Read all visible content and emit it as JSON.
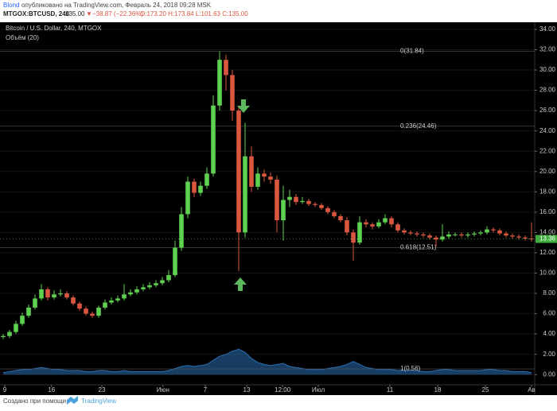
{
  "header": {
    "author": "Blond",
    "published": "опубликовано на TradingView.com, Февраль 24, 2018 09:28 MSK",
    "symbol": "MTGOX:BTCUSD, 240",
    "last": "135.00",
    "arrow": "▼",
    "change": "−38.87 (−22.36%)",
    "ohlc": "O:173.20 H:173.84 L:101.63 C:135.00"
  },
  "footer": {
    "text": "Создано при помощи",
    "brand": "TradingView"
  },
  "chart_data": {
    "type": "candlestick",
    "title": "Bitcoin / U.S. Dollar, 240, MTGOX",
    "volume_label": "Объём (20)",
    "up_color": "#5fd04f",
    "down_color": "#d9573f",
    "volume_color": "#2b6fb3",
    "grid": true,
    "open": [
      3.7,
      3.8,
      4.2,
      5.0,
      5.8,
      6.6,
      7.5,
      8.4,
      7.6,
      7.9,
      8.0,
      7.6,
      7.0,
      6.5,
      6.0,
      5.8,
      6.6,
      7.1,
      7.3,
      7.5,
      7.9,
      8.1,
      8.4,
      8.6,
      8.8,
      9.0,
      9.3,
      9.8,
      12.5,
      15.8,
      19.0,
      17.9,
      18.6,
      19.8,
      26.5,
      31.0,
      29.5,
      26.0,
      14.0,
      21.5,
      18.5,
      19.8,
      19.5,
      19.2,
      15.2,
      17.2,
      17.5,
      17.0,
      17.1,
      16.8,
      16.7,
      16.4,
      16.0,
      15.6,
      15.2,
      14.0,
      13.0,
      15.0,
      14.8,
      14.6,
      15.0,
      15.4,
      14.8,
      14.2,
      14.0,
      13.9,
      13.8,
      13.7,
      13.5,
      13.3,
      13.6,
      13.8,
      13.8,
      13.7,
      13.8,
      13.9,
      14.0,
      14.3,
      14.2,
      13.9,
      13.7,
      13.6,
      13.5,
      13.4
    ],
    "high": [
      4.0,
      4.4,
      5.3,
      6.1,
      6.9,
      7.9,
      8.9,
      8.6,
      8.3,
      8.4,
      8.2,
      7.8,
      7.2,
      6.7,
      6.2,
      6.8,
      7.4,
      7.6,
      7.8,
      8.9,
      8.4,
      8.7,
      8.9,
      9.1,
      9.3,
      9.6,
      10.3,
      13.2,
      16.5,
      19.5,
      19.3,
      19.0,
      20.4,
      27.5,
      31.84,
      31.5,
      30.0,
      26.5,
      24.8,
      22.5,
      20.4,
      20.2,
      19.9,
      19.6,
      18.6,
      18.2,
      17.8,
      17.5,
      17.3,
      17.0,
      16.9,
      16.6,
      16.2,
      15.8,
      15.5,
      14.3,
      15.6,
      15.3,
      15.0,
      15.3,
      15.8,
      15.6,
      15.0,
      14.4,
      14.2,
      14.1,
      14.0,
      13.9,
      13.7,
      14.8,
      14.1,
      14.0,
      14.0,
      14.0,
      14.1,
      14.2,
      14.6,
      14.5,
      14.4,
      14.1,
      13.9,
      13.8,
      13.7,
      15.0
    ],
    "low": [
      3.5,
      3.6,
      4.0,
      4.8,
      5.6,
      6.4,
      7.3,
      7.3,
      7.4,
      7.7,
      7.4,
      6.8,
      6.3,
      5.8,
      5.6,
      5.6,
      6.4,
      6.9,
      7.1,
      7.3,
      7.7,
      7.9,
      8.2,
      8.4,
      8.6,
      8.8,
      9.1,
      9.6,
      12.2,
      15.4,
      17.5,
      17.6,
      18.3,
      19.5,
      26.0,
      28.0,
      25.0,
      10.2,
      13.5,
      18.0,
      18.2,
      19.0,
      18.8,
      14.0,
      13.2,
      16.5,
      16.7,
      16.8,
      16.6,
      16.5,
      16.2,
      15.8,
      15.4,
      15.0,
      13.7,
      11.2,
      12.8,
      14.5,
      14.3,
      14.4,
      14.8,
      14.5,
      14.0,
      13.8,
      13.7,
      13.6,
      13.5,
      13.3,
      12.6,
      13.1,
      13.4,
      13.6,
      13.5,
      13.5,
      13.6,
      13.7,
      13.8,
      14.0,
      13.7,
      13.5,
      13.4,
      13.3,
      13.2,
      13.1
    ],
    "close": [
      3.8,
      4.2,
      5.0,
      5.8,
      6.6,
      7.5,
      8.4,
      7.6,
      7.9,
      8.0,
      7.6,
      7.0,
      6.5,
      6.0,
      5.8,
      6.6,
      7.1,
      7.3,
      7.5,
      7.9,
      8.1,
      8.4,
      8.6,
      8.8,
      9.0,
      9.3,
      9.8,
      12.5,
      15.8,
      19.0,
      17.9,
      18.6,
      19.8,
      26.5,
      31.0,
      29.5,
      26.0,
      14.0,
      21.5,
      18.5,
      19.8,
      19.5,
      19.2,
      15.2,
      17.2,
      17.5,
      17.0,
      17.1,
      16.8,
      16.7,
      16.4,
      16.0,
      15.6,
      15.2,
      14.0,
      13.0,
      15.0,
      14.8,
      14.6,
      15.0,
      15.4,
      14.8,
      14.2,
      14.0,
      13.9,
      13.8,
      13.7,
      13.5,
      13.3,
      13.6,
      13.8,
      13.8,
      13.7,
      13.8,
      13.9,
      14.0,
      14.3,
      14.2,
      13.9,
      13.7,
      13.6,
      13.5,
      13.4,
      13.36
    ],
    "volume": [
      0.2,
      0.3,
      0.4,
      0.5,
      0.5,
      0.6,
      0.7,
      0.6,
      0.5,
      0.5,
      0.4,
      0.4,
      0.4,
      0.3,
      0.3,
      0.4,
      0.4,
      0.3,
      0.3,
      0.4,
      0.3,
      0.3,
      0.3,
      0.3,
      0.3,
      0.3,
      0.4,
      0.6,
      0.8,
      0.9,
      0.8,
      0.9,
      1.0,
      1.4,
      1.8,
      2.0,
      2.3,
      2.5,
      2.2,
      1.6,
      1.2,
      1.0,
      0.9,
      1.0,
      1.1,
      0.8,
      0.7,
      0.6,
      0.5,
      0.5,
      0.5,
      0.6,
      0.7,
      0.8,
      1.0,
      1.3,
      1.0,
      0.7,
      0.6,
      0.5,
      0.5,
      0.5,
      0.4,
      0.4,
      0.4,
      0.4,
      0.3,
      0.3,
      0.4,
      0.5,
      0.5,
      0.4,
      0.4,
      0.4,
      0.4,
      0.4,
      0.5,
      0.5,
      0.4,
      0.4,
      0.3,
      0.3,
      0.3,
      0.2
    ],
    "xlim": [
      -0.5,
      83.5
    ],
    "xticks": [
      {
        "value": 0.25,
        "label": "9"
      },
      {
        "value": 7.6,
        "label": "16"
      },
      {
        "value": 15.5,
        "label": "23"
      },
      {
        "value": 25.1,
        "label": "Июн"
      },
      {
        "value": 31.75,
        "label": "7"
      },
      {
        "value": 38.25,
        "label": "13"
      },
      {
        "value": 43.9,
        "label": "12:00"
      },
      {
        "value": 49.5,
        "label": "Июл"
      },
      {
        "value": 60.75,
        "label": "11"
      },
      {
        "value": 68.25,
        "label": "18"
      },
      {
        "value": 75.75,
        "label": "25"
      },
      {
        "value": 83,
        "label": "Ав"
      }
    ],
    "ylim": [
      -1.0,
      34.7
    ],
    "yticks": [
      {
        "value": 0,
        "label": "0.00"
      },
      {
        "value": 2,
        "label": "2.00"
      },
      {
        "value": 4,
        "label": "4.00"
      },
      {
        "value": 6,
        "label": "6.00"
      },
      {
        "value": 8,
        "label": "8.00"
      },
      {
        "value": 10,
        "label": "10.00"
      },
      {
        "value": 12,
        "label": "12.00"
      },
      {
        "value": 14,
        "label": "14.00"
      },
      {
        "value": 16,
        "label": "16.00"
      },
      {
        "value": 18,
        "label": "18.00"
      },
      {
        "value": 20,
        "label": "20.00"
      },
      {
        "value": 22,
        "label": "22.00"
      },
      {
        "value": 24,
        "label": "24.00"
      },
      {
        "value": 26,
        "label": "26.00"
      },
      {
        "value": 28,
        "label": "28.00"
      },
      {
        "value": 30,
        "label": "30.00"
      },
      {
        "value": 32,
        "label": "32.00"
      },
      {
        "value": 34,
        "label": "34.00"
      }
    ],
    "fib_levels": [
      {
        "value": 31.84,
        "label": "0(31.84)"
      },
      {
        "value": 24.46,
        "label": "0.236(24.46)"
      },
      {
        "value": 12.51,
        "label": "0.618(12.51)"
      },
      {
        "value": 0.56,
        "label": "1(0.56)"
      }
    ],
    "last_price": 13.36
  }
}
